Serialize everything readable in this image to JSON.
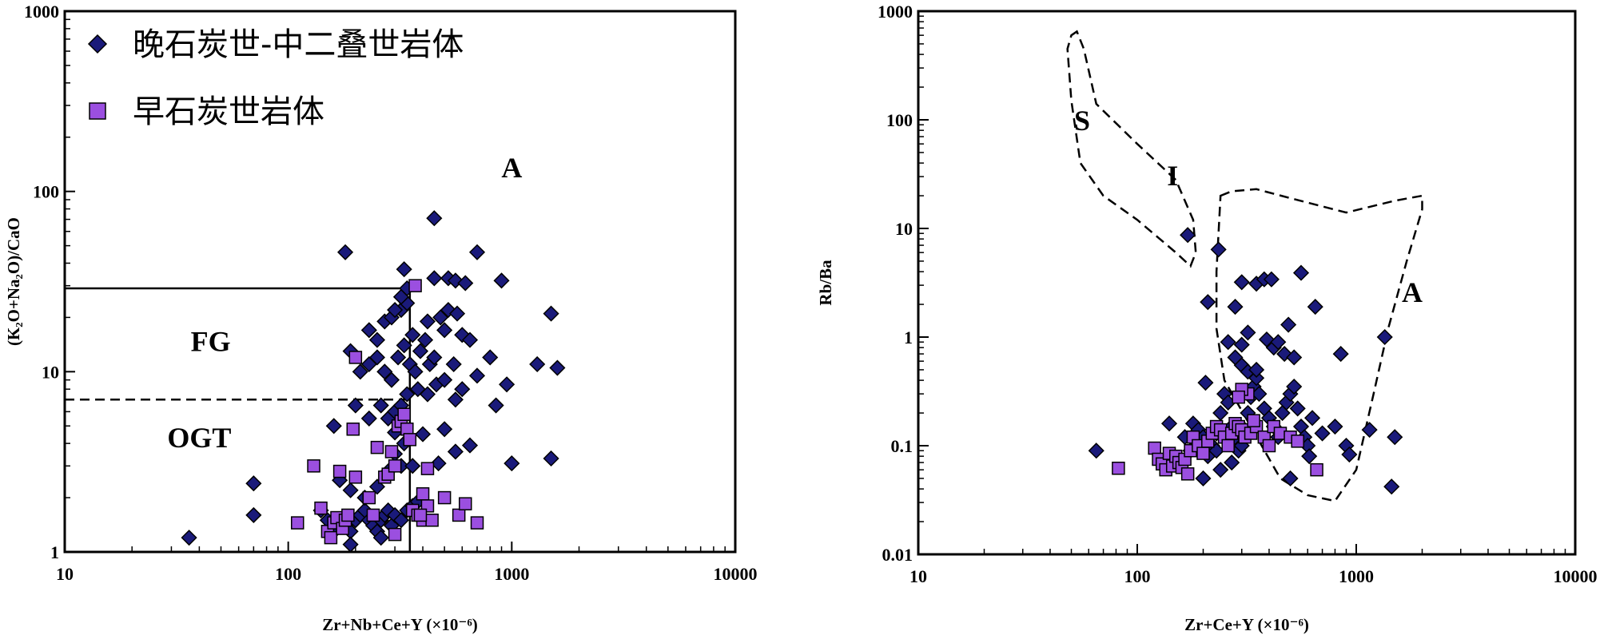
{
  "chart_data": [
    {
      "type": "scatter",
      "xlabel": "Zr+Nb+Ce+Y (×10⁻⁶)",
      "ylabel": "(K₂O+Na₂O)/CaO",
      "x_scale": "log",
      "y_scale": "log",
      "xlim": [
        10,
        10000
      ],
      "ylim": [
        1,
        1000
      ],
      "xticks": [
        "10",
        "100",
        "1000",
        "10000"
      ],
      "yticks": [
        "1",
        "10",
        "100",
        "1000"
      ],
      "legend": {
        "position": "top-left",
        "items": [
          "晚石炭世-中二叠世岩体",
          "早石炭世岩体"
        ]
      },
      "field_labels": [
        "A",
        "FG",
        "OGT"
      ],
      "series": [
        {
          "name": "晚石炭世-中二叠世岩体",
          "marker": "diamond",
          "color": "#1a1a7a",
          "points": [
            [
              36,
              1.2
            ],
            [
              70,
              2.4
            ],
            [
              70,
              1.6
            ],
            [
              140,
              1.7
            ],
            [
              150,
              1.5
            ],
            [
              160,
              1.3
            ],
            [
              170,
              1.5
            ],
            [
              180,
              1.4
            ],
            [
              190,
              1.3
            ],
            [
              200,
              1.5
            ],
            [
              210,
              1.6
            ],
            [
              220,
              1.7
            ],
            [
              230,
              1.5
            ],
            [
              240,
              1.4
            ],
            [
              250,
              1.3
            ],
            [
              260,
              1.5
            ],
            [
              270,
              1.6
            ],
            [
              280,
              1.7
            ],
            [
              290,
              1.4
            ],
            [
              300,
              1.6
            ],
            [
              320,
              1.5
            ],
            [
              340,
              1.7
            ],
            [
              360,
              1.8
            ],
            [
              380,
              1.9
            ],
            [
              170,
              2.5
            ],
            [
              190,
              2.2
            ],
            [
              220,
              2.0
            ],
            [
              250,
              2.3
            ],
            [
              280,
              2.8
            ],
            [
              300,
              3.5
            ],
            [
              320,
              3.0
            ],
            [
              160,
              5.0
            ],
            [
              200,
              6.5
            ],
            [
              230,
              5.5
            ],
            [
              260,
              6.5
            ],
            [
              280,
              5.5
            ],
            [
              300,
              6.0
            ],
            [
              320,
              6.5
            ],
            [
              340,
              7.5
            ],
            [
              380,
              8.0
            ],
            [
              420,
              7.5
            ],
            [
              460,
              8.5
            ],
            [
              500,
              9.0
            ],
            [
              560,
              7.0
            ],
            [
              600,
              8.0
            ],
            [
              700,
              9.5
            ],
            [
              850,
              6.5
            ],
            [
              950,
              8.5
            ],
            [
              1300,
              11
            ],
            [
              1600,
              10.5
            ],
            [
              190,
              13
            ],
            [
              210,
              10
            ],
            [
              230,
              11
            ],
            [
              250,
              12
            ],
            [
              270,
              10
            ],
            [
              290,
              9
            ],
            [
              310,
              12
            ],
            [
              330,
              14
            ],
            [
              350,
              11
            ],
            [
              370,
              10
            ],
            [
              390,
              13
            ],
            [
              410,
              15
            ],
            [
              430,
              11
            ],
            [
              450,
              12
            ],
            [
              500,
              17
            ],
            [
              550,
              11
            ],
            [
              600,
              16
            ],
            [
              650,
              15
            ],
            [
              800,
              12
            ],
            [
              230,
              17
            ],
            [
              250,
              15
            ],
            [
              270,
              19
            ],
            [
              290,
              20
            ],
            [
              320,
              22
            ],
            [
              340,
              24
            ],
            [
              300,
              22
            ],
            [
              360,
              16
            ],
            [
              420,
              19
            ],
            [
              480,
              20
            ],
            [
              520,
              22
            ],
            [
              570,
              21
            ],
            [
              320,
              26
            ],
            [
              340,
              29
            ],
            [
              330,
              37
            ],
            [
              450,
              33
            ],
            [
              520,
              33
            ],
            [
              560,
              32
            ],
            [
              620,
              31
            ],
            [
              700,
              46
            ],
            [
              900,
              32
            ],
            [
              1500,
              21
            ],
            [
              180,
              46
            ],
            [
              450,
              71
            ],
            [
              500,
              4.8
            ],
            [
              400,
              4.5
            ],
            [
              560,
              3.6
            ],
            [
              470,
              3.1
            ],
            [
              650,
              3.9
            ],
            [
              1000,
              3.1
            ],
            [
              1500,
              3.3
            ],
            [
              360,
              3.0
            ],
            [
              330,
              4.0
            ],
            [
              300,
              4.6
            ],
            [
              260,
              1.2
            ],
            [
              190,
              1.1
            ]
          ]
        },
        {
          "name": "早石炭世岩体",
          "marker": "square",
          "color": "#9b4fe0",
          "points": [
            [
              110,
              1.45
            ],
            [
              130,
              3.0
            ],
            [
              140,
              1.75
            ],
            [
              150,
              1.3
            ],
            [
              155,
              1.2
            ],
            [
              160,
              1.45
            ],
            [
              165,
              1.55
            ],
            [
              175,
              1.35
            ],
            [
              180,
              1.5
            ],
            [
              185,
              1.6
            ],
            [
              170,
              2.8
            ],
            [
              200,
              2.6
            ],
            [
              195,
              4.8
            ],
            [
              230,
              2.0
            ],
            [
              240,
              1.6
            ],
            [
              250,
              3.8
            ],
            [
              270,
              2.6
            ],
            [
              280,
              2.7
            ],
            [
              290,
              3.6
            ],
            [
              300,
              3.0
            ],
            [
              310,
              5.0
            ],
            [
              320,
              5.3
            ],
            [
              330,
              5.8
            ],
            [
              340,
              4.8
            ],
            [
              350,
              4.2
            ],
            [
              360,
              1.7
            ],
            [
              380,
              1.6
            ],
            [
              400,
              1.5
            ],
            [
              420,
              2.9
            ],
            [
              440,
              1.5
            ],
            [
              500,
              2.0
            ],
            [
              580,
              1.6
            ],
            [
              620,
              1.85
            ],
            [
              700,
              1.45
            ],
            [
              300,
              1.25
            ],
            [
              200,
              12
            ],
            [
              370,
              30
            ],
            [
              400,
              2.1
            ],
            [
              420,
              1.8
            ],
            [
              390,
              1.6
            ]
          ]
        }
      ]
    },
    {
      "type": "scatter",
      "xlabel": "Zr+Ce+Y (×10⁻⁶)",
      "ylabel": "Rb/Ba",
      "x_scale": "log",
      "y_scale": "log",
      "xlim": [
        10,
        10000
      ],
      "ylim": [
        0.01,
        1000
      ],
      "xticks": [
        "10",
        "100",
        "1000",
        "10000"
      ],
      "yticks": [
        "0.01",
        "0.1",
        "1",
        "10",
        "100",
        "1000"
      ],
      "field_labels": [
        "S",
        "I",
        "A"
      ],
      "series": [
        {
          "name": "晚石炭世-中二叠世岩体",
          "marker": "diamond",
          "color": "#1a1a7a",
          "points": [
            [
              65,
              0.09
            ],
            [
              140,
              0.16
            ],
            [
              165,
              0.12
            ],
            [
              175,
              0.09
            ],
            [
              180,
              0.16
            ],
            [
              190,
              0.14
            ],
            [
              200,
              0.12
            ],
            [
              205,
              0.38
            ],
            [
              210,
              0.08
            ],
            [
              220,
              0.1
            ],
            [
              230,
              0.13
            ],
            [
              240,
              0.2
            ],
            [
              250,
              0.3
            ],
            [
              260,
              0.25
            ],
            [
              270,
              0.15
            ],
            [
              280,
              0.12
            ],
            [
              290,
              0.09
            ],
            [
              300,
              0.1
            ],
            [
              310,
              0.14
            ],
            [
              320,
              0.2
            ],
            [
              330,
              0.28
            ],
            [
              340,
              0.35
            ],
            [
              350,
              0.42
            ],
            [
              360,
              0.3
            ],
            [
              380,
              0.22
            ],
            [
              400,
              0.18
            ],
            [
              420,
              0.15
            ],
            [
              440,
              0.12
            ],
            [
              460,
              0.2
            ],
            [
              480,
              0.25
            ],
            [
              500,
              0.3
            ],
            [
              520,
              0.35
            ],
            [
              540,
              0.22
            ],
            [
              560,
              0.15
            ],
            [
              580,
              0.12
            ],
            [
              600,
              0.1
            ],
            [
              630,
              0.18
            ],
            [
              700,
              0.13
            ],
            [
              800,
              0.15
            ],
            [
              900,
              0.1
            ],
            [
              300,
              0.55
            ],
            [
              320,
              0.48
            ],
            [
              350,
              0.5
            ],
            [
              420,
              0.8
            ],
            [
              470,
              0.7
            ],
            [
              520,
              0.65
            ],
            [
              260,
              0.9
            ],
            [
              300,
              0.85
            ],
            [
              280,
              0.65
            ],
            [
              320,
              1.1
            ],
            [
              390,
              0.95
            ],
            [
              440,
              0.9
            ],
            [
              490,
              1.3
            ],
            [
              560,
              3.9
            ],
            [
              300,
              3.2
            ],
            [
              350,
              3.1
            ],
            [
              380,
              3.4
            ],
            [
              410,
              3.4
            ],
            [
              280,
              1.9
            ],
            [
              210,
              2.1
            ],
            [
              170,
              8.7
            ],
            [
              235,
              6.4
            ],
            [
              650,
              1.9
            ],
            [
              850,
              0.7
            ],
            [
              1350,
              1.0
            ],
            [
              1500,
              0.12
            ],
            [
              1450,
              0.042
            ],
            [
              930,
              0.083
            ],
            [
              1150,
              0.14
            ],
            [
              610,
              0.08
            ],
            [
              500,
              0.05
            ],
            [
              240,
              0.06
            ],
            [
              200,
              0.05
            ],
            [
              160,
              0.07
            ],
            [
              230,
              0.09
            ],
            [
              270,
              0.07
            ]
          ]
        },
        {
          "name": "早石炭世岩体",
          "marker": "square",
          "color": "#9b4fe0",
          "points": [
            [
              82,
              0.062
            ],
            [
              120,
              0.095
            ],
            [
              125,
              0.075
            ],
            [
              130,
              0.068
            ],
            [
              135,
              0.06
            ],
            [
              140,
              0.085
            ],
            [
              145,
              0.065
            ],
            [
              150,
              0.08
            ],
            [
              155,
              0.07
            ],
            [
              160,
              0.063
            ],
            [
              165,
              0.075
            ],
            [
              170,
              0.055
            ],
            [
              175,
              0.09
            ],
            [
              180,
              0.12
            ],
            [
              190,
              0.1
            ],
            [
              200,
              0.085
            ],
            [
              210,
              0.11
            ],
            [
              220,
              0.13
            ],
            [
              230,
              0.15
            ],
            [
              240,
              0.14
            ],
            [
              250,
              0.12
            ],
            [
              260,
              0.1
            ],
            [
              270,
              0.13
            ],
            [
              280,
              0.16
            ],
            [
              290,
              0.15
            ],
            [
              300,
              0.14
            ],
            [
              310,
              0.12
            ],
            [
              320,
              0.3
            ],
            [
              330,
              0.13
            ],
            [
              350,
              0.15
            ],
            [
              380,
              0.12
            ],
            [
              400,
              0.1
            ],
            [
              420,
              0.15
            ],
            [
              450,
              0.13
            ],
            [
              500,
              0.12
            ],
            [
              540,
              0.11
            ],
            [
              660,
              0.06
            ],
            [
              300,
              0.33
            ],
            [
              290,
              0.28
            ],
            [
              340,
              0.17
            ]
          ]
        }
      ]
    }
  ]
}
